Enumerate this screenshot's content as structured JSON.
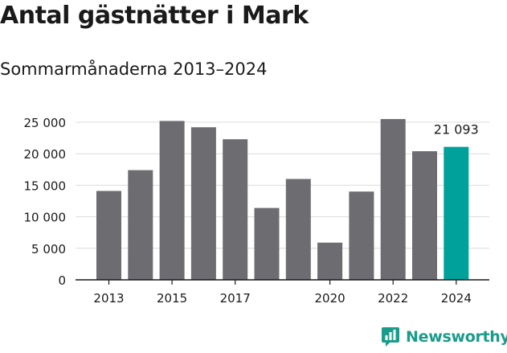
{
  "title": "Antal gästnätter i Mark",
  "subtitle": "Sommarmånaderna 2013–2024",
  "brand": {
    "name": "Newsworthy",
    "color": "#1a9c8b",
    "icon": "newsworthy-logo-icon"
  },
  "colors": {
    "bar": "#6d6c70",
    "highlight": "#00a19a",
    "grid": "#dcdcdc",
    "axis": "#1a1a1a"
  },
  "chart_data": {
    "type": "bar",
    "title": "Antal gästnätter i Mark",
    "subtitle": "Sommarmånaderna 2013–2024",
    "xlabel": "",
    "ylabel": "",
    "categories": [
      "2013",
      "2014",
      "2015",
      "2016",
      "2017",
      "2018",
      "2019",
      "2020",
      "2021",
      "2022",
      "2023",
      "2024"
    ],
    "values": [
      14100,
      17400,
      25200,
      24200,
      22300,
      11400,
      16000,
      5900,
      14000,
      25500,
      20400,
      21093
    ],
    "highlight_index": 11,
    "data_labels": [
      {
        "index": 11,
        "text": "21 093"
      }
    ],
    "x_tick_labels": [
      "2013",
      "",
      "2015",
      "",
      "2017",
      "",
      "",
      "2020",
      "",
      "2022",
      "",
      "2024"
    ],
    "y_ticks": [
      0,
      5000,
      10000,
      15000,
      20000,
      25000
    ],
    "y_tick_labels": [
      "0",
      "5 000",
      "10 000",
      "15 000",
      "20 000",
      "25 000"
    ],
    "ylim": [
      0,
      27000
    ],
    "grid": true,
    "legend": "none"
  }
}
